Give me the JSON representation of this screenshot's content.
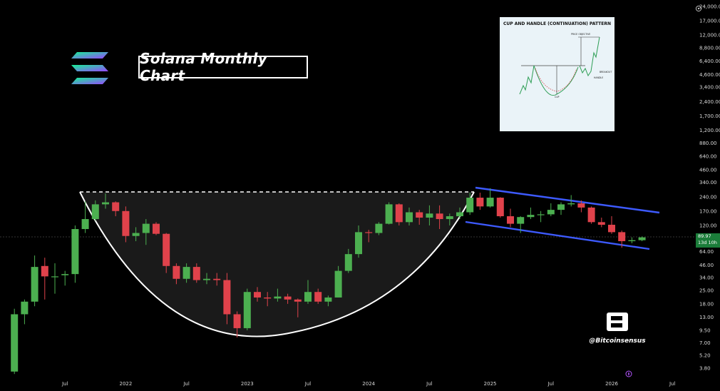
{
  "title": "Solana Monthly Chart",
  "brand_handle": "@Bitcoinsensus",
  "inset": {
    "title": "CUP AND HANDLE (CONTINUATION) PATTERN",
    "labels": [
      "PRICE OBJECTIVE",
      "BREAKOUT",
      "HANDLE",
      "CUP"
    ]
  },
  "price_tag": {
    "price": "89.97",
    "countdown": "13d 10h"
  },
  "colors": {
    "up": "#4caf50",
    "down": "#e0424b",
    "channel": "#3d5afe",
    "cup": "#ffffff",
    "price_tag": "#1b7d3a"
  },
  "icons": {
    "logo": "solana-logo-icon",
    "brand": "bitcoinsensus-logo-icon",
    "compass": "compass-icon"
  },
  "chart_data": {
    "type": "candlestick",
    "y_scale": "log",
    "y_ticks": [
      24000,
      17000,
      12000,
      8800,
      6400,
      4600,
      3400,
      2400,
      1700,
      1200,
      880,
      640,
      460,
      340,
      240,
      170,
      120,
      89.97,
      64,
      46,
      34,
      25,
      18,
      13,
      9.5,
      7,
      5.2,
      3.8
    ],
    "y_tick_labels": [
      "24,000.00",
      "17,000.00",
      "12,000.00",
      "8,800.00",
      "6,400.00",
      "4,600.00",
      "3,400.00",
      "2,400.00",
      "1,700.00",
      "1,200.00",
      "880.00",
      "640.00",
      "460.00",
      "340.00",
      "240.00",
      "170.00",
      "120.00",
      "89.97",
      "64.00",
      "46.00",
      "34.00",
      "25.00",
      "18.00",
      "13.00",
      "9.50",
      "7.00",
      "5.20",
      "3.80"
    ],
    "x_labels": [
      "Jul",
      "2022",
      "Jul",
      "2023",
      "Jul",
      "2024",
      "Jul",
      "2025",
      "Jul",
      "2026",
      "Jul"
    ],
    "candles": [
      {
        "date": "2021-02",
        "o": 3.5,
        "h": 16,
        "l": 3.3,
        "c": 14
      },
      {
        "date": "2021-03",
        "o": 14,
        "h": 20,
        "l": 11,
        "c": 19
      },
      {
        "date": "2021-04",
        "o": 19,
        "h": 58,
        "l": 17,
        "c": 44
      },
      {
        "date": "2021-05",
        "o": 45,
        "h": 55,
        "l": 20,
        "c": 35
      },
      {
        "date": "2021-06",
        "o": 35,
        "h": 48,
        "l": 23,
        "c": 35
      },
      {
        "date": "2021-07",
        "o": 36,
        "h": 40,
        "l": 28,
        "c": 37
      },
      {
        "date": "2021-08",
        "o": 37,
        "h": 120,
        "l": 30,
        "c": 110
      },
      {
        "date": "2021-09",
        "o": 110,
        "h": 215,
        "l": 100,
        "c": 140
      },
      {
        "date": "2021-10",
        "o": 140,
        "h": 220,
        "l": 135,
        "c": 200
      },
      {
        "date": "2021-11",
        "o": 200,
        "h": 260,
        "l": 180,
        "c": 210
      },
      {
        "date": "2021-12",
        "o": 210,
        "h": 215,
        "l": 150,
        "c": 170
      },
      {
        "date": "2022-01",
        "o": 170,
        "h": 190,
        "l": 80,
        "c": 93
      },
      {
        "date": "2022-02",
        "o": 93,
        "h": 115,
        "l": 82,
        "c": 100
      },
      {
        "date": "2022-03",
        "o": 100,
        "h": 140,
        "l": 75,
        "c": 125
      },
      {
        "date": "2022-04",
        "o": 125,
        "h": 130,
        "l": 95,
        "c": 98
      },
      {
        "date": "2022-05",
        "o": 98,
        "h": 100,
        "l": 38,
        "c": 45
      },
      {
        "date": "2022-06",
        "o": 45,
        "h": 48,
        "l": 29,
        "c": 33
      },
      {
        "date": "2022-07",
        "o": 33,
        "h": 48,
        "l": 30,
        "c": 44
      },
      {
        "date": "2022-08",
        "o": 44,
        "h": 48,
        "l": 30,
        "c": 32
      },
      {
        "date": "2022-09",
        "o": 32,
        "h": 38,
        "l": 29,
        "c": 33
      },
      {
        "date": "2022-10",
        "o": 33,
        "h": 38,
        "l": 28,
        "c": 32
      },
      {
        "date": "2022-11",
        "o": 32,
        "h": 38,
        "l": 11,
        "c": 14
      },
      {
        "date": "2022-12",
        "o": 14,
        "h": 15,
        "l": 8,
        "c": 10
      },
      {
        "date": "2023-01",
        "o": 10,
        "h": 26,
        "l": 9.5,
        "c": 24
      },
      {
        "date": "2023-02",
        "o": 24,
        "h": 27,
        "l": 19,
        "c": 21
      },
      {
        "date": "2023-03",
        "o": 21,
        "h": 24,
        "l": 17,
        "c": 20.5
      },
      {
        "date": "2023-04",
        "o": 20.5,
        "h": 26,
        "l": 19,
        "c": 21.5
      },
      {
        "date": "2023-05",
        "o": 21.5,
        "h": 23,
        "l": 18,
        "c": 20
      },
      {
        "date": "2023-06",
        "o": 20,
        "h": 20.5,
        "l": 13,
        "c": 19
      },
      {
        "date": "2023-07",
        "o": 19,
        "h": 32,
        "l": 18,
        "c": 24
      },
      {
        "date": "2023-08",
        "o": 24,
        "h": 26,
        "l": 18,
        "c": 19
      },
      {
        "date": "2023-09",
        "o": 19,
        "h": 22,
        "l": 17,
        "c": 21
      },
      {
        "date": "2023-10",
        "o": 21,
        "h": 45,
        "l": 21,
        "c": 40
      },
      {
        "date": "2023-11",
        "o": 40,
        "h": 68,
        "l": 38,
        "c": 60
      },
      {
        "date": "2023-12",
        "o": 60,
        "h": 120,
        "l": 55,
        "c": 102
      },
      {
        "date": "2024-01",
        "o": 102,
        "h": 108,
        "l": 80,
        "c": 100
      },
      {
        "date": "2024-02",
        "o": 100,
        "h": 130,
        "l": 95,
        "c": 125
      },
      {
        "date": "2024-03",
        "o": 125,
        "h": 210,
        "l": 123,
        "c": 200
      },
      {
        "date": "2024-04",
        "o": 200,
        "h": 205,
        "l": 120,
        "c": 130
      },
      {
        "date": "2024-05",
        "o": 130,
        "h": 185,
        "l": 120,
        "c": 165
      },
      {
        "date": "2024-06",
        "o": 165,
        "h": 175,
        "l": 122,
        "c": 145
      },
      {
        "date": "2024-07",
        "o": 145,
        "h": 195,
        "l": 120,
        "c": 160
      },
      {
        "date": "2024-08",
        "o": 160,
        "h": 195,
        "l": 110,
        "c": 140
      },
      {
        "date": "2024-09",
        "o": 140,
        "h": 160,
        "l": 120,
        "c": 150
      },
      {
        "date": "2024-10",
        "o": 150,
        "h": 185,
        "l": 140,
        "c": 165
      },
      {
        "date": "2024-11",
        "o": 165,
        "h": 265,
        "l": 155,
        "c": 235
      },
      {
        "date": "2024-12",
        "o": 235,
        "h": 265,
        "l": 175,
        "c": 190
      },
      {
        "date": "2025-01",
        "o": 190,
        "h": 295,
        "l": 185,
        "c": 235
      },
      {
        "date": "2025-02",
        "o": 235,
        "h": 238,
        "l": 145,
        "c": 150
      },
      {
        "date": "2025-03",
        "o": 150,
        "h": 180,
        "l": 115,
        "c": 125
      },
      {
        "date": "2025-04",
        "o": 125,
        "h": 150,
        "l": 100,
        "c": 147
      },
      {
        "date": "2025-05",
        "o": 147,
        "h": 185,
        "l": 140,
        "c": 155
      },
      {
        "date": "2025-06",
        "o": 155,
        "h": 170,
        "l": 130,
        "c": 157
      },
      {
        "date": "2025-07",
        "o": 157,
        "h": 205,
        "l": 150,
        "c": 175
      },
      {
        "date": "2025-08",
        "o": 175,
        "h": 210,
        "l": 155,
        "c": 200
      },
      {
        "date": "2025-09",
        "o": 200,
        "h": 250,
        "l": 190,
        "c": 205
      },
      {
        "date": "2025-10",
        "o": 205,
        "h": 220,
        "l": 165,
        "c": 185
      },
      {
        "date": "2025-11",
        "o": 185,
        "h": 190,
        "l": 125,
        "c": 130
      },
      {
        "date": "2025-12",
        "o": 130,
        "h": 145,
        "l": 115,
        "c": 122
      },
      {
        "date": "2026-01",
        "o": 122,
        "h": 150,
        "l": 98,
        "c": 102
      },
      {
        "date": "2026-02",
        "o": 102,
        "h": 106,
        "l": 70,
        "c": 82
      },
      {
        "date": "2026-03",
        "o": 82,
        "h": 90,
        "l": 78,
        "c": 84
      },
      {
        "date": "2026-04",
        "o": 84,
        "h": 92,
        "l": 82,
        "c": 89.97
      }
    ],
    "current_price": 89.97
  }
}
